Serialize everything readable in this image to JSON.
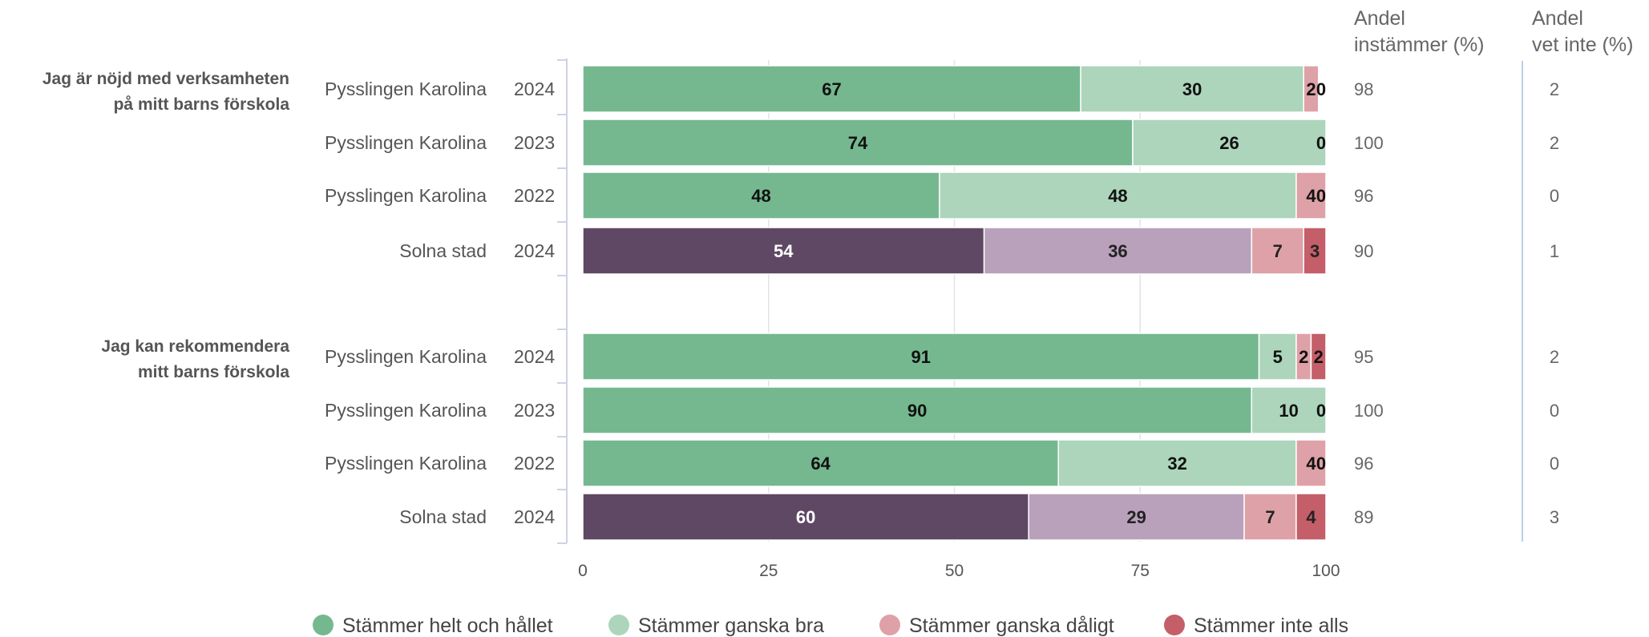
{
  "chart_data": {
    "type": "bar",
    "orientation": "horizontal",
    "stacked": true,
    "xlim": [
      0,
      100
    ],
    "x_ticks": [
      "0",
      "25",
      "50",
      "75",
      "100"
    ],
    "grid": true,
    "legend_position": "bottom",
    "legend": [
      {
        "name": "Stämmer helt och hållet",
        "color": "#75b890"
      },
      {
        "name": "Stämmer ganska bra",
        "color": "#acd5bb"
      },
      {
        "name": "Stämmer ganska dåligt",
        "color": "#dea1a7"
      },
      {
        "name": "Stämmer inte alls",
        "color": "#c45e68"
      }
    ],
    "comparison_colors": [
      "#5f4864",
      "#b9a1bb",
      "#dea1a7",
      "#c45e68"
    ],
    "comparison_label_colors": [
      "#ffffff",
      "#222222",
      "#222222",
      "#222222"
    ],
    "primary_label_colors": [
      "#111111",
      "#111111",
      "#111111",
      "#111111"
    ],
    "columns": {
      "andel_instammer": {
        "header": [
          "Andel",
          "instämmer (%)"
        ]
      },
      "andel_vet_inte": {
        "header": [
          "Andel",
          "vet inte (%)"
        ]
      }
    },
    "groups": [
      {
        "question": [
          "Jag är nöjd med verksamheten",
          "på mitt barns förskola"
        ],
        "rows": [
          {
            "unit": "Pysslingen Karolina",
            "year": "2024",
            "comparison": false,
            "values": [
              67,
              30,
              2,
              0
            ],
            "andel_instammer": "98",
            "andel_vet_inte": "2"
          },
          {
            "unit": "Pysslingen Karolina",
            "year": "2023",
            "comparison": false,
            "values": [
              74,
              26,
              0,
              0
            ],
            "labels": [
              "74",
              "26",
              "",
              "0"
            ],
            "andel_instammer": "100",
            "andel_vet_inte": "2"
          },
          {
            "unit": "Pysslingen Karolina",
            "year": "2022",
            "comparison": false,
            "values": [
              48,
              48,
              4,
              0
            ],
            "andel_instammer": "96",
            "andel_vet_inte": "0"
          },
          {
            "unit": "Solna stad",
            "year": "2024",
            "comparison": true,
            "values": [
              54,
              36,
              7,
              3
            ],
            "andel_instammer": "90",
            "andel_vet_inte": "1"
          }
        ]
      },
      {
        "question": [
          "Jag kan rekommendera",
          "mitt barns förskola"
        ],
        "rows": [
          {
            "unit": "Pysslingen Karolina",
            "year": "2024",
            "comparison": false,
            "values": [
              91,
              5,
              2,
              2
            ],
            "andel_instammer": "95",
            "andel_vet_inte": "2"
          },
          {
            "unit": "Pysslingen Karolina",
            "year": "2023",
            "comparison": false,
            "values": [
              90,
              10,
              0,
              0
            ],
            "labels": [
              "90",
              "10",
              "",
              "0"
            ],
            "andel_instammer": "100",
            "andel_vet_inte": "0"
          },
          {
            "unit": "Pysslingen Karolina",
            "year": "2022",
            "comparison": false,
            "values": [
              64,
              32,
              4,
              0
            ],
            "andel_instammer": "96",
            "andel_vet_inte": "0"
          },
          {
            "unit": "Solna stad",
            "year": "2024",
            "comparison": true,
            "values": [
              60,
              29,
              7,
              4
            ],
            "andel_instammer": "89",
            "andel_vet_inte": "3"
          }
        ]
      }
    ]
  }
}
